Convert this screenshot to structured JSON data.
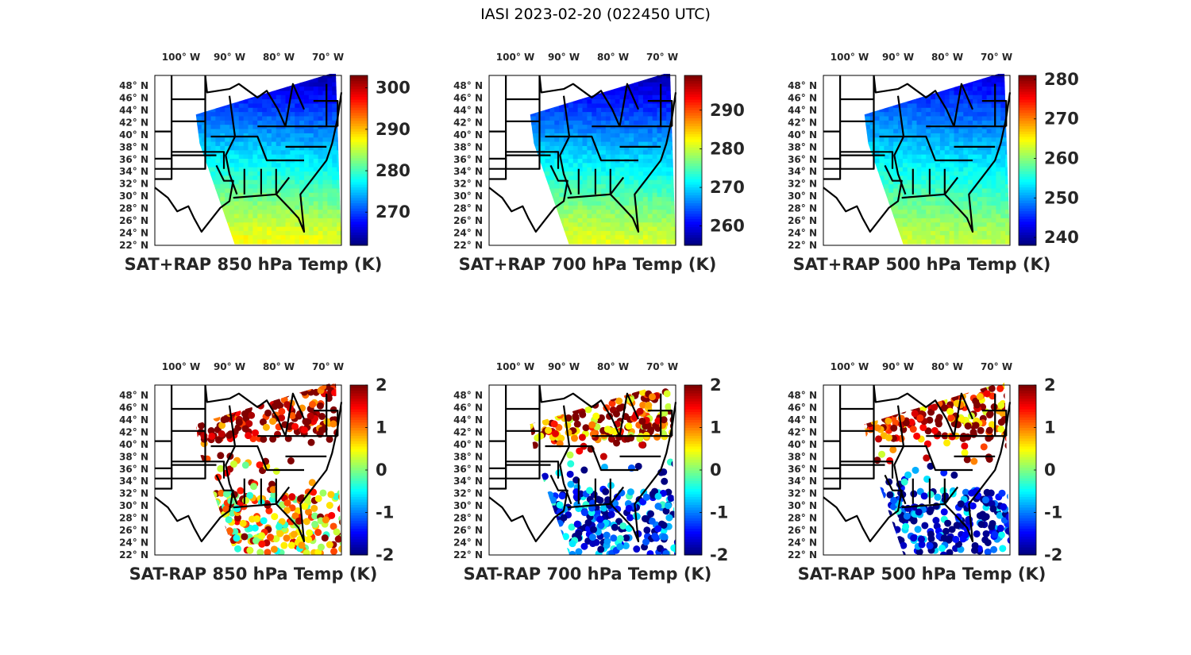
{
  "figure_title": "IASI 2023-02-20 (022450 UTC)",
  "colormap": "jet",
  "chart_data": [
    {
      "type": "heatmap",
      "title": "SAT+RAP 850 hPa Temp (K)",
      "xlabel": "",
      "ylabel": "",
      "x_ticks": [
        "100° W",
        "90° W",
        "80° W",
        "70° W"
      ],
      "y_ticks": [
        "48° N",
        "46° N",
        "44° N",
        "42° N",
        "40° N",
        "38° N",
        "36° N",
        "34° N",
        "32° N",
        "30° N",
        "28° N",
        "26° N",
        "24° N",
        "22° N"
      ],
      "lon_range": [
        -105,
        -67
      ],
      "lat_range": [
        22,
        50
      ],
      "colorbar": {
        "range": [
          262,
          303
        ],
        "ticks": [
          270,
          280,
          290,
          300
        ]
      },
      "field": "gradient",
      "north_value": 265,
      "south_value": 289
    },
    {
      "type": "heatmap",
      "title": "SAT+RAP 700 hPa Temp (K)",
      "x_ticks": [
        "100° W",
        "90° W",
        "80° W",
        "70° W"
      ],
      "y_ticks": [
        "48° N",
        "46° N",
        "44° N",
        "42° N",
        "40° N",
        "38° N",
        "36° N",
        "34° N",
        "32° N",
        "30° N",
        "28° N",
        "26° N",
        "24° N",
        "22° N"
      ],
      "lon_range": [
        -105,
        -67
      ],
      "lat_range": [
        22,
        50
      ],
      "colorbar": {
        "range": [
          255,
          299
        ],
        "ticks": [
          260,
          270,
          280,
          290
        ]
      },
      "field": "gradient",
      "north_value": 258,
      "south_value": 283
    },
    {
      "type": "heatmap",
      "title": "SAT+RAP 500 hPa Temp (K)",
      "x_ticks": [
        "100° W",
        "90° W",
        "80° W",
        "70° W"
      ],
      "y_ticks": [
        "48° N",
        "46° N",
        "44° N",
        "42° N",
        "40° N",
        "38° N",
        "36° N",
        "34° N",
        "32° N",
        "30° N",
        "28° N",
        "26° N",
        "24° N",
        "22° N"
      ],
      "lon_range": [
        -105,
        -67
      ],
      "lat_range": [
        22,
        50
      ],
      "colorbar": {
        "range": [
          238,
          281
        ],
        "ticks": [
          240,
          250,
          260,
          270,
          280
        ]
      },
      "field": "gradient",
      "north_value": 243,
      "south_value": 264
    },
    {
      "type": "scatter",
      "title": "SAT-RAP 850 hPa Temp (K)",
      "x_ticks": [
        "100° W",
        "90° W",
        "80° W",
        "70° W"
      ],
      "y_ticks": [
        "48° N",
        "46° N",
        "44° N",
        "42° N",
        "40° N",
        "38° N",
        "36° N",
        "34° N",
        "32° N",
        "30° N",
        "28° N",
        "26° N",
        "24° N",
        "22° N"
      ],
      "lon_range": [
        -105,
        -67
      ],
      "lat_range": [
        22,
        50
      ],
      "colorbar": {
        "range": [
          -2,
          2
        ],
        "ticks": [
          2,
          1,
          0,
          -1,
          -2
        ]
      },
      "field": "difference",
      "north_bias": 2,
      "south_bias": 0.8
    },
    {
      "type": "scatter",
      "title": "SAT-RAP 700 hPa Temp (K)",
      "x_ticks": [
        "100° W",
        "90° W",
        "80° W",
        "70° W"
      ],
      "y_ticks": [
        "48° N",
        "46° N",
        "44° N",
        "42° N",
        "40° N",
        "38° N",
        "36° N",
        "34° N",
        "32° N",
        "30° N",
        "28° N",
        "26° N",
        "24° N",
        "22° N"
      ],
      "lon_range": [
        -105,
        -67
      ],
      "lat_range": [
        22,
        50
      ],
      "colorbar": {
        "range": [
          -2,
          2
        ],
        "ticks": [
          2,
          1,
          0,
          -1,
          -2
        ]
      },
      "field": "difference",
      "north_bias": 1.5,
      "south_bias": -1.5
    },
    {
      "type": "scatter",
      "title": "SAT-RAP 500 hPa Temp (K)",
      "x_ticks": [
        "100° W",
        "90° W",
        "80° W",
        "70° W"
      ],
      "y_ticks": [
        "48° N",
        "46° N",
        "44° N",
        "42° N",
        "40° N",
        "38° N",
        "36° N",
        "34° N",
        "32° N",
        "30° N",
        "28° N",
        "26° N",
        "24° N",
        "22° N"
      ],
      "lon_range": [
        -105,
        -67
      ],
      "lat_range": [
        22,
        50
      ],
      "colorbar": {
        "range": [
          -2,
          2
        ],
        "ticks": [
          2,
          1,
          0,
          -1,
          -2
        ]
      },
      "field": "difference",
      "north_bias": 1.6,
      "south_bias": -1.6
    }
  ]
}
